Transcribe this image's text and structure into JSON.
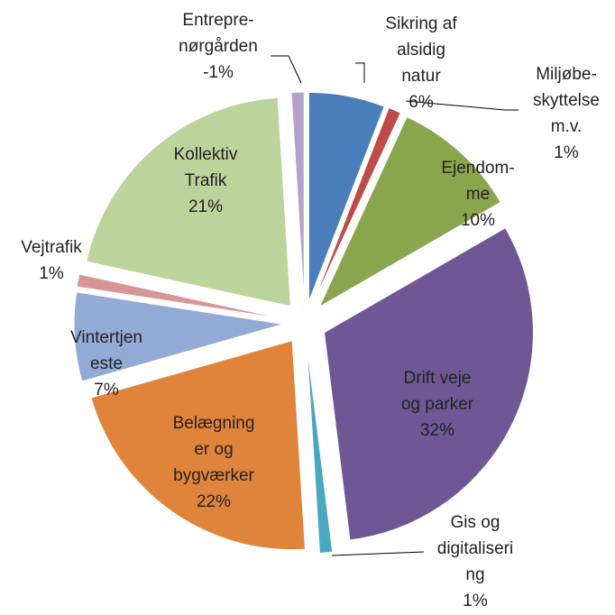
{
  "chart_data": {
    "type": "pie",
    "categories": [
      "Sikring af\nalsidig\nnatur",
      "Miljøbe-\nskyttelse\nm.v.",
      "Ejendom-\nme",
      "Drift veje\nog parker",
      "Gis og\ndigitaliseri\nng",
      "Belægning\ner og\nbygværker",
      "Vintertjen\neste",
      "Vejtrafik",
      "Kollektiv\nTrafik",
      "Entrepre-\nnørgården"
    ],
    "values": [
      6,
      1,
      10,
      32,
      1,
      22,
      7,
      1,
      21,
      -1
    ],
    "value_labels": [
      "6%",
      "1%",
      "10%",
      "32%",
      "1%",
      "22%",
      "7%",
      "1%",
      "21%",
      "-1%"
    ],
    "colors": [
      "#4a7ebb",
      "#be4b48",
      "#8aa64c",
      "#6f5796",
      "#4aa7c0",
      "#e0843c",
      "#93aad6",
      "#d89595",
      "#bcd39b",
      "#b3a3cb"
    ]
  }
}
